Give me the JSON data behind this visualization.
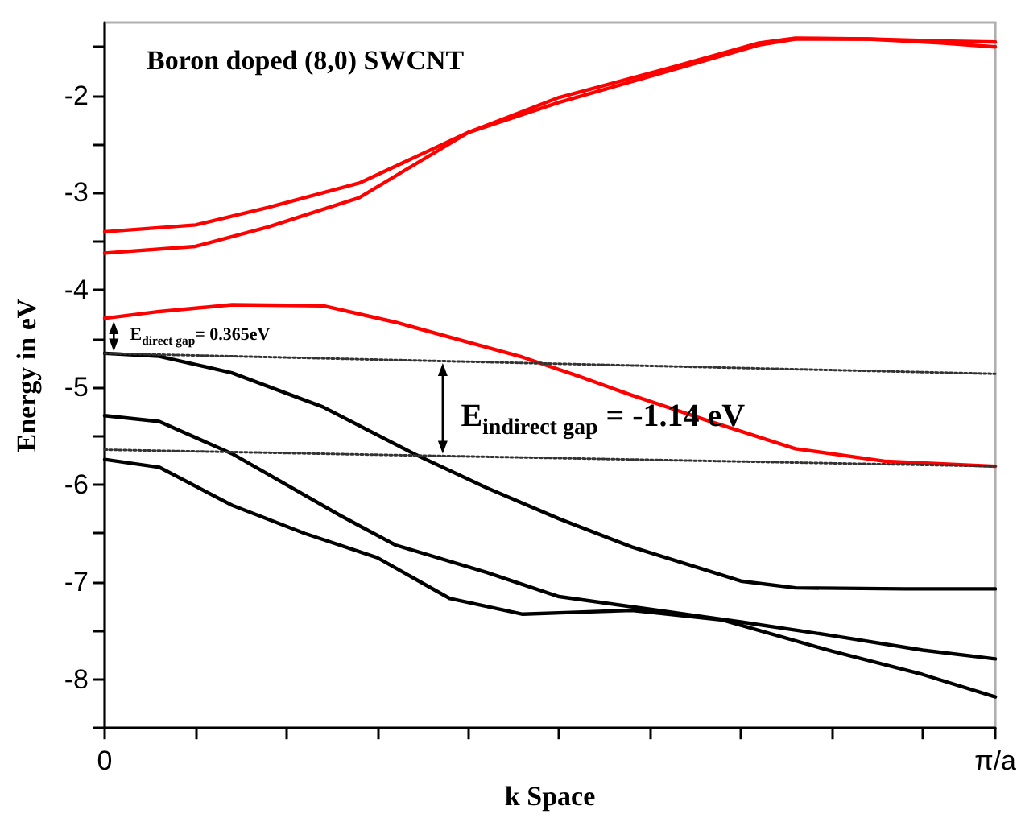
{
  "chart_data": {
    "type": "line",
    "title": "Boron doped (8,0) SWCNT",
    "xlabel": "k Space",
    "ylabel": "Energy in eV",
    "ylim": [
      -8.5,
      -1.25
    ],
    "categories": [
      "0",
      null,
      null,
      null,
      null,
      null,
      null,
      null,
      null,
      null,
      null,
      null,
      null,
      null,
      null,
      null,
      null,
      null,
      null,
      null,
      null,
      null,
      null,
      null,
      null,
      null,
      null,
      null,
      null,
      null,
      null,
      null,
      null,
      null,
      null,
      null,
      null,
      null,
      null,
      null,
      null,
      null,
      null,
      null,
      null,
      null,
      null,
      null,
      null,
      "π/a"
    ],
    "yticks": [
      {
        "value": -8.5,
        "label": null
      },
      -8,
      {
        "value": -7.5,
        "label": null
      },
      -7,
      {
        "value": -6.5,
        "label": null
      },
      -6,
      {
        "value": -5.5,
        "label": null
      },
      -5,
      {
        "value": -4.5,
        "label": null
      },
      -4,
      {
        "value": -3.5,
        "label": null
      },
      -3,
      {
        "value": -2.5,
        "label": null
      },
      -2,
      {
        "value": -1.5,
        "label": null
      }
    ],
    "marker": "none",
    "series": [
      {
        "color": "#ff0000",
        "values": [
          -3.4,
          null,
          null,
          null,
          null,
          -3.33,
          null,
          null,
          null,
          -3.15,
          null,
          null,
          null,
          null,
          -2.9,
          null,
          null,
          null,
          null,
          null,
          -2.38,
          null,
          null,
          null,
          null,
          -2.07,
          null,
          null,
          null,
          null,
          null,
          -1.75,
          null,
          null,
          null,
          null,
          -1.48,
          null,
          -1.42,
          null,
          null,
          null,
          -1.42,
          null,
          null,
          null,
          -1.44,
          null,
          null,
          -1.45
        ]
      },
      {
        "color": "#ff0000",
        "values": [
          -3.62,
          null,
          null,
          null,
          null,
          -3.55,
          null,
          null,
          null,
          -3.35,
          null,
          null,
          null,
          null,
          -3.05,
          null,
          null,
          null,
          null,
          null,
          -2.38,
          null,
          null,
          null,
          null,
          -2.02,
          null,
          null,
          null,
          null,
          null,
          -1.72,
          null,
          null,
          null,
          null,
          -1.46,
          null,
          -1.41,
          null,
          null,
          null,
          -1.42,
          null,
          null,
          null,
          -1.46,
          null,
          null,
          -1.5
        ]
      },
      {
        "color": "#ff0000",
        "values": [
          -4.29,
          null,
          null,
          -4.22,
          null,
          null,
          null,
          -4.15,
          null,
          null,
          null,
          null,
          -4.16,
          null,
          null,
          null,
          -4.33,
          null,
          null,
          null,
          null,
          null,
          null,
          -4.69,
          null,
          null,
          -4.88,
          null,
          null,
          -5.08,
          null,
          null,
          null,
          -5.33,
          null,
          null,
          null,
          null,
          -5.63,
          null,
          null,
          null,
          null,
          -5.76,
          null,
          null,
          null,
          null,
          null,
          -5.81
        ]
      },
      {
        "color": "#000000",
        "values": [
          -4.65,
          null,
          null,
          -4.68,
          null,
          null,
          null,
          -4.85,
          null,
          null,
          null,
          null,
          -5.2,
          null,
          null,
          null,
          null,
          -5.68,
          null,
          null,
          null,
          -6.03,
          null,
          null,
          null,
          -6.35,
          null,
          null,
          null,
          -6.64,
          null,
          null,
          null,
          null,
          null,
          -6.99,
          null,
          null,
          -7.06,
          null,
          null,
          null,
          null,
          null,
          -7.07,
          null,
          null,
          null,
          null,
          -7.07
        ]
      },
      {
        "color": "#000000",
        "values": [
          -5.29,
          null,
          null,
          -5.35,
          null,
          null,
          null,
          -5.68,
          null,
          null,
          null,
          null,
          null,
          -6.32,
          null,
          null,
          -6.62,
          null,
          null,
          null,
          null,
          -6.9,
          null,
          null,
          null,
          -7.15,
          null,
          null,
          null,
          null,
          -7.28,
          null,
          null,
          null,
          null,
          -7.41,
          null,
          null,
          null,
          null,
          -7.55,
          null,
          null,
          null,
          null,
          -7.7,
          null,
          null,
          null,
          -7.79
        ]
      },
      {
        "color": "#000000",
        "values": [
          -5.74,
          null,
          null,
          -5.82,
          null,
          null,
          null,
          -6.21,
          null,
          null,
          null,
          -6.5,
          null,
          null,
          null,
          -6.75,
          null,
          null,
          null,
          -7.17,
          null,
          -7.25,
          null,
          -7.33,
          null,
          null,
          -7.31,
          null,
          null,
          -7.29,
          null,
          null,
          null,
          null,
          -7.39,
          null,
          null,
          null,
          null,
          null,
          -7.71,
          null,
          null,
          null,
          null,
          -7.95,
          null,
          null,
          null,
          -8.18
        ]
      },
      {
        "color": "#333333",
        "line_style": "dotted",
        "values": [
          -4.65,
          null,
          null,
          null,
          null,
          null,
          null,
          null,
          null,
          null,
          null,
          null,
          null,
          null,
          null,
          null,
          null,
          null,
          null,
          null,
          null,
          null,
          null,
          null,
          null,
          null,
          null,
          null,
          null,
          null,
          null,
          null,
          null,
          null,
          null,
          null,
          null,
          null,
          null,
          null,
          null,
          null,
          null,
          null,
          null,
          null,
          null,
          null,
          null,
          -4.86
        ]
      },
      {
        "color": "#333333",
        "line_style": "dotted",
        "values": [
          -5.64,
          null,
          null,
          null,
          null,
          null,
          null,
          null,
          null,
          null,
          null,
          null,
          null,
          null,
          null,
          null,
          null,
          null,
          null,
          null,
          null,
          null,
          null,
          null,
          null,
          null,
          null,
          null,
          null,
          null,
          null,
          null,
          null,
          null,
          null,
          null,
          null,
          null,
          null,
          null,
          null,
          null,
          null,
          null,
          null,
          null,
          null,
          null,
          null,
          -5.81
        ]
      }
    ],
    "annotations": [
      "E$_{direct gap}$= 0.365eV",
      "E$_{indirect gap}$ = -1.14 eV"
    ]
  }
}
